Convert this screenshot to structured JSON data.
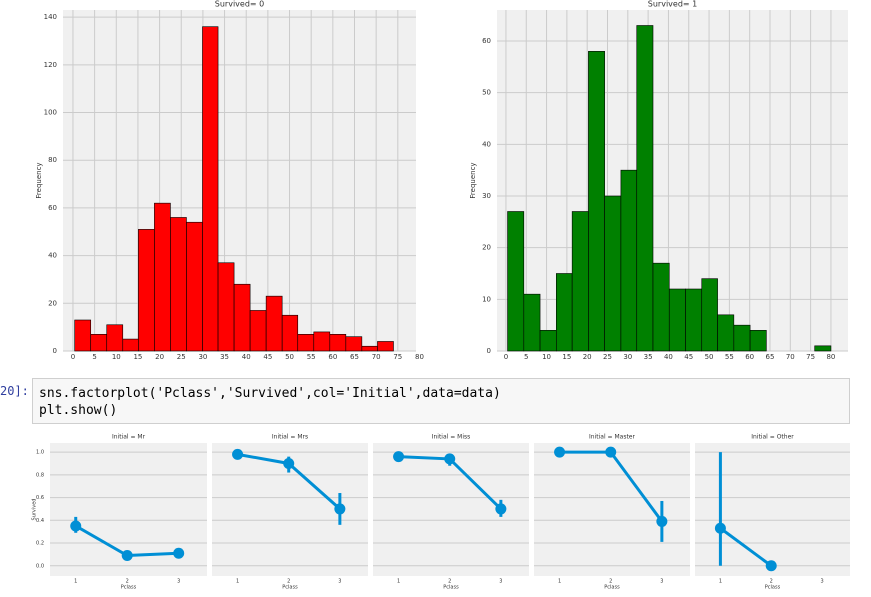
{
  "chart_data": [
    {
      "type": "histogram",
      "title": "Survived= 0",
      "ylabel": "Frequency",
      "color": "#ff0000",
      "grid": true,
      "bins": [
        0.4,
        4.1,
        7.8,
        11.5,
        15.1,
        18.8,
        22.5,
        26.2,
        29.9,
        33.5,
        37.2,
        40.9,
        44.6,
        48.3,
        51.9,
        55.6,
        59.3,
        63.0,
        66.7,
        70.3,
        74.0
      ],
      "values": [
        13,
        7,
        11,
        5,
        51,
        62,
        56,
        54,
        136,
        37,
        28,
        17,
        23,
        15,
        7,
        8,
        7,
        6,
        2,
        4
      ],
      "xlim": [
        -2.3,
        79.2
      ],
      "xticks": [
        0,
        5,
        10,
        15,
        20,
        25,
        30,
        35,
        40,
        45,
        50,
        55,
        60,
        65,
        70,
        75,
        80
      ],
      "ylim": [
        0,
        143
      ],
      "yticks": [
        0,
        20,
        40,
        60,
        80,
        100,
        120,
        140
      ]
    },
    {
      "type": "histogram",
      "title": "Survived= 1",
      "ylabel": "Frequency",
      "color": "#008000",
      "grid": true,
      "bins": [
        0.4,
        4.4,
        8.4,
        12.4,
        16.3,
        20.3,
        24.3,
        28.3,
        32.2,
        36.2,
        40.2,
        44.2,
        48.2,
        52.1,
        56.1,
        60.1,
        64.1,
        68.1,
        72.0,
        76.0,
        80.0
      ],
      "values": [
        27,
        11,
        4,
        15,
        27,
        58,
        30,
        35,
        63,
        17,
        12,
        12,
        14,
        7,
        5,
        4,
        0,
        0,
        0,
        1
      ],
      "xlim": [
        -2.2,
        84.2
      ],
      "xticks": [
        0,
        5,
        10,
        15,
        20,
        25,
        30,
        35,
        40,
        45,
        50,
        55,
        60,
        65,
        70,
        75,
        80
      ],
      "ylim": [
        0,
        66
      ],
      "yticks": [
        0,
        10,
        20,
        30,
        40,
        50,
        60
      ]
    },
    {
      "type": "point",
      "title": "Initial = Mr",
      "xlabel": "Pclass",
      "ylabel": "Survived",
      "color": "#008fd5",
      "grid": true,
      "categories": [
        "1",
        "2",
        "3"
      ],
      "values": [
        0.35,
        0.09,
        0.11
      ],
      "ci_low": [
        0.29,
        0.06,
        0.1
      ],
      "ci_high": [
        0.43,
        0.13,
        0.12
      ],
      "ylim": [
        -0.09,
        1.08
      ],
      "yticks": [
        {
          "value": 0,
          "label": "0.0"
        },
        {
          "value": 0.2,
          "label": "0.2"
        },
        {
          "value": 0.4,
          "label": "0.4"
        },
        {
          "value": 0.6,
          "label": "0.6"
        },
        {
          "value": 0.8,
          "label": "0.8"
        },
        {
          "value": 1,
          "label": "1.0"
        }
      ]
    },
    {
      "type": "point",
      "title": "Initial = Mrs",
      "xlabel": "Pclass",
      "color": "#008fd5",
      "grid": true,
      "categories": [
        "1",
        "2",
        "3"
      ],
      "values": [
        0.98,
        0.9,
        0.5
      ],
      "ci_low": [
        0.96,
        0.82,
        0.36
      ],
      "ci_high": [
        1,
        0.96,
        0.64
      ],
      "ylim": [
        -0.09,
        1.08
      ],
      "yticks": [
        0,
        0.2,
        0.4,
        0.6,
        0.8,
        1
      ]
    },
    {
      "type": "point",
      "title": "Initial = Miss",
      "xlabel": "Pclass",
      "color": "#008fd5",
      "grid": true,
      "categories": [
        "1",
        "2",
        "3"
      ],
      "values": [
        0.96,
        0.94,
        0.5
      ],
      "ci_low": [
        0.92,
        0.88,
        0.43
      ],
      "ci_high": [
        0.99,
        0.98,
        0.58
      ],
      "ylim": [
        -0.09,
        1.08
      ],
      "yticks": [
        0,
        0.2,
        0.4,
        0.6,
        0.8,
        1
      ]
    },
    {
      "type": "point",
      "title": "Initial = Master",
      "xlabel": "Pclass",
      "color": "#008fd5",
      "grid": true,
      "categories": [
        "1",
        "2",
        "3"
      ],
      "values": [
        1,
        1,
        0.39
      ],
      "ci_low": [
        1,
        1,
        0.21
      ],
      "ci_high": [
        1,
        1,
        0.57
      ],
      "ylim": [
        -0.09,
        1.08
      ],
      "yticks": [
        0,
        0.2,
        0.4,
        0.6,
        0.8,
        1
      ]
    },
    {
      "type": "point",
      "title": "Initial = Other",
      "xlabel": "Pclass",
      "color": "#008fd5",
      "grid": true,
      "categories": [
        "1",
        "2",
        "3"
      ],
      "values": [
        0.33,
        0,
        null
      ],
      "ci_low": [
        0,
        0,
        null
      ],
      "ci_high": [
        1,
        0,
        null
      ],
      "ylim": [
        -0.09,
        1.08
      ],
      "yticks": [
        0,
        0.2,
        0.4,
        0.6,
        0.8,
        1
      ]
    }
  ],
  "cell": {
    "prompt": "20]:",
    "code": [
      "sns.factorplot('Pclass','Survived',col='Initial',data=data)",
      "plt.show()"
    ]
  }
}
